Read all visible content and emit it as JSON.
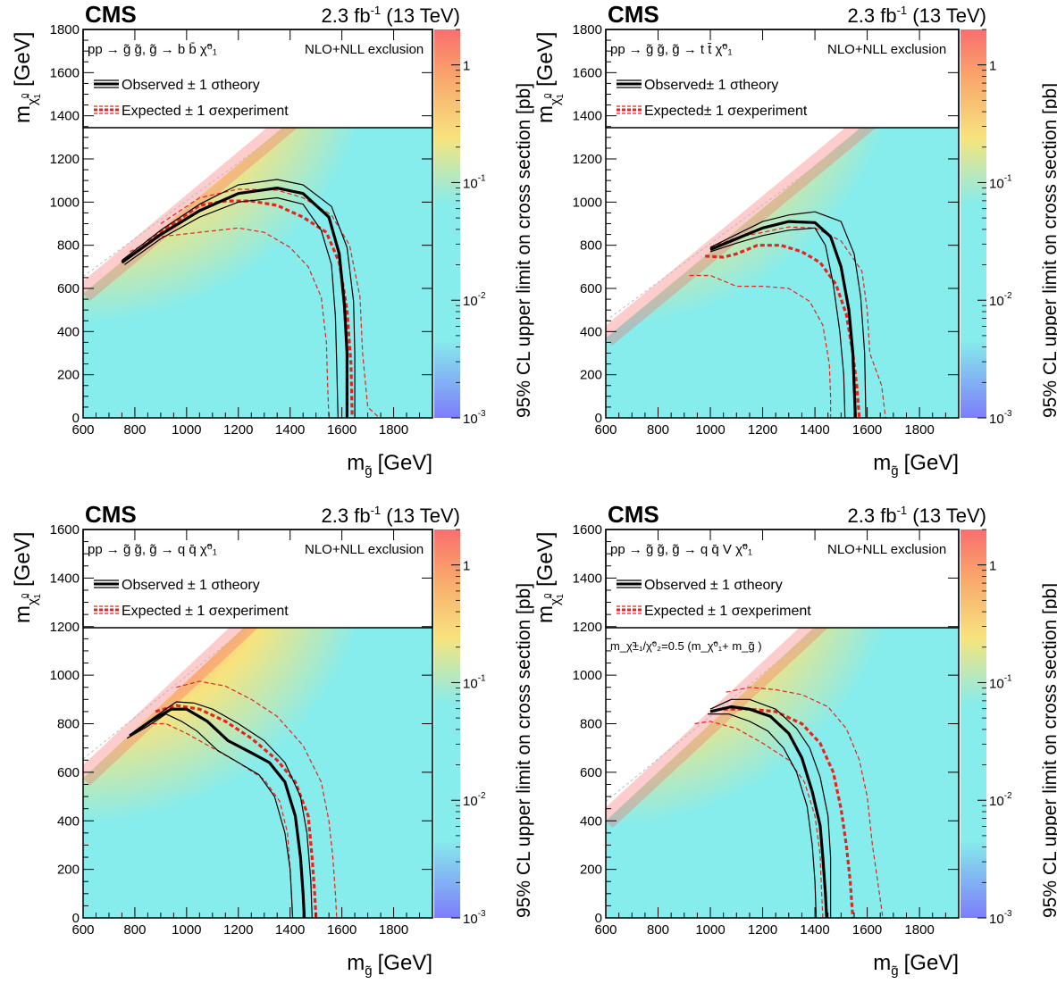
{
  "figure": {
    "experiment": "CMS",
    "lumi": "2.3 fb",
    "lumi_exp": "-1",
    "energy": " (13 TeV)",
    "x_title": "m",
    "x_title_sub": "g̃",
    "unit": "[GeV]",
    "y_title": "m",
    "y_title_sub": "χ̃",
    "y_title_sub_sup": "0",
    "y_title_sub_sub": "1",
    "z_title": "95% CL upper limit on cross section [pb]",
    "z_ticks": [
      {
        "base": "1",
        "exp": "",
        "value": 1
      },
      {
        "base": "10",
        "exp": "-1",
        "value": 0.1
      },
      {
        "base": "10",
        "exp": "-2",
        "value": 0.01
      },
      {
        "base": "10",
        "exp": "-3",
        "value": 0.001
      }
    ],
    "legend_common": {
      "nlo": "NLO+NLL exclusion",
      "observed": "Observed",
      "expected": "Expected",
      "pm1": "± 1",
      "sigma": "σ",
      "theory_sub": "theory",
      "experiment_sub": "experiment"
    },
    "colors": {
      "observed": "#000000",
      "expected": "#e8231c",
      "diagonal": "#bbbbbb",
      "z_high": "#f96e6e",
      "z_mid": "#f7e47e",
      "z_low": "#87ecec",
      "z_min": "#7d7dfa"
    }
  },
  "chart_data": [
    {
      "type": "heatmap",
      "process": "pp → g̃ g̃, g̃ → b b̄ χ̃⁰₁",
      "legend_observed": "Observed ± 1 σtheory",
      "legend_expected": "Expected ± 1 σexperiment",
      "xlim": [
        600,
        1950
      ],
      "ylim": [
        0,
        1800
      ],
      "xticks": [
        600,
        800,
        1000,
        1200,
        1400,
        1600,
        1800
      ],
      "yticks": [
        0,
        200,
        400,
        600,
        800,
        1000,
        1200,
        1400,
        1600,
        1800
      ],
      "zlim": [
        0.001,
        2
      ],
      "z_log": true,
      "heat_peak_x": 600,
      "heat_hot_exp": 1.3,
      "heat_cold_exp": -2.0,
      "diagonal_offset": 25,
      "note": "",
      "observed": [
        [
          750,
          720
        ],
        [
          900,
          850
        ],
        [
          1050,
          960
        ],
        [
          1200,
          1040
        ],
        [
          1350,
          1065
        ],
        [
          1450,
          1040
        ],
        [
          1550,
          930
        ],
        [
          1590,
          760
        ],
        [
          1610,
          520
        ],
        [
          1620,
          300
        ],
        [
          1620,
          0
        ]
      ],
      "observed_plus": [
        [
          750,
          730
        ],
        [
          900,
          870
        ],
        [
          1050,
          990
        ],
        [
          1200,
          1080
        ],
        [
          1350,
          1105
        ],
        [
          1450,
          1080
        ],
        [
          1560,
          980
        ],
        [
          1620,
          790
        ],
        [
          1645,
          540
        ],
        [
          1650,
          300
        ],
        [
          1650,
          0
        ]
      ],
      "observed_minus": [
        [
          760,
          710
        ],
        [
          900,
          830
        ],
        [
          1050,
          930
        ],
        [
          1200,
          1000
        ],
        [
          1350,
          1020
        ],
        [
          1450,
          990
        ],
        [
          1520,
          870
        ],
        [
          1560,
          710
        ],
        [
          1575,
          470
        ],
        [
          1580,
          260
        ],
        [
          1585,
          0
        ]
      ],
      "expected": [
        [
          850,
          820
        ],
        [
          950,
          900
        ],
        [
          1050,
          985
        ],
        [
          1150,
          1005
        ],
        [
          1250,
          1005
        ],
        [
          1350,
          985
        ],
        [
          1450,
          930
        ],
        [
          1540,
          860
        ],
        [
          1590,
          720
        ],
        [
          1620,
          500
        ],
        [
          1635,
          250
        ],
        [
          1640,
          0
        ]
      ],
      "expected_plus": [
        [
          900,
          900
        ],
        [
          1050,
          1020
        ],
        [
          1200,
          1060
        ],
        [
          1350,
          1055
        ],
        [
          1450,
          1020
        ],
        [
          1560,
          940
        ],
        [
          1630,
          800
        ],
        [
          1670,
          560
        ],
        [
          1680,
          300
        ],
        [
          1700,
          50
        ],
        [
          1745,
          0
        ]
      ],
      "expected_minus": [
        [
          780,
          770
        ],
        [
          900,
          840
        ],
        [
          1050,
          860
        ],
        [
          1200,
          880
        ],
        [
          1300,
          860
        ],
        [
          1400,
          790
        ],
        [
          1470,
          700
        ],
        [
          1520,
          560
        ],
        [
          1540,
          350
        ],
        [
          1545,
          150
        ],
        [
          1550,
          0
        ]
      ]
    },
    {
      "type": "heatmap",
      "process": "pp → g̃ g̃, g̃ → t t̄ χ̃⁰₁",
      "legend_observed": "Observed± 1 σtheory",
      "legend_expected": "Expected± 1 σexperiment",
      "xlim": [
        600,
        1950
      ],
      "ylim": [
        0,
        1800
      ],
      "xticks": [
        600,
        800,
        1000,
        1200,
        1400,
        1600,
        1800
      ],
      "yticks": [
        0,
        200,
        400,
        600,
        800,
        1000,
        1200,
        1400,
        1600,
        1800
      ],
      "zlim": [
        0.001,
        2
      ],
      "z_log": true,
      "heat_peak_x": 600,
      "heat_hot_exp": 0.8,
      "heat_cold_exp": -2.0,
      "diagonal_offset": 230,
      "note": "",
      "observed": [
        [
          1000,
          780
        ],
        [
          1100,
          830
        ],
        [
          1200,
          880
        ],
        [
          1300,
          910
        ],
        [
          1400,
          905
        ],
        [
          1460,
          840
        ],
        [
          1500,
          700
        ],
        [
          1530,
          500
        ],
        [
          1545,
          300
        ],
        [
          1555,
          0
        ]
      ],
      "observed_plus": [
        [
          1000,
          790
        ],
        [
          1100,
          850
        ],
        [
          1200,
          910
        ],
        [
          1300,
          940
        ],
        [
          1400,
          955
        ],
        [
          1500,
          910
        ],
        [
          1550,
          760
        ],
        [
          1575,
          560
        ],
        [
          1590,
          300
        ],
        [
          1595,
          0
        ]
      ],
      "observed_minus": [
        [
          1000,
          770
        ],
        [
          1100,
          810
        ],
        [
          1200,
          845
        ],
        [
          1300,
          870
        ],
        [
          1400,
          880
        ],
        [
          1440,
          800
        ],
        [
          1470,
          620
        ],
        [
          1495,
          400
        ],
        [
          1510,
          200
        ],
        [
          1515,
          0
        ]
      ],
      "expected": [
        [
          980,
          750
        ],
        [
          1050,
          745
        ],
        [
          1100,
          760
        ],
        [
          1180,
          800
        ],
        [
          1270,
          800
        ],
        [
          1350,
          770
        ],
        [
          1420,
          720
        ],
        [
          1480,
          620
        ],
        [
          1520,
          480
        ],
        [
          1545,
          300
        ],
        [
          1560,
          150
        ],
        [
          1570,
          0
        ]
      ],
      "expected_plus": [
        [
          1000,
          790
        ],
        [
          1100,
          835
        ],
        [
          1200,
          860
        ],
        [
          1300,
          885
        ],
        [
          1400,
          880
        ],
        [
          1500,
          820
        ],
        [
          1580,
          680
        ],
        [
          1600,
          500
        ],
        [
          1610,
          300
        ],
        [
          1655,
          150
        ],
        [
          1670,
          0
        ]
      ],
      "expected_minus": [
        [
          920,
          660
        ],
        [
          1000,
          660
        ],
        [
          1100,
          610
        ],
        [
          1200,
          610
        ],
        [
          1300,
          600
        ],
        [
          1380,
          540
        ],
        [
          1430,
          430
        ],
        [
          1455,
          250
        ],
        [
          1460,
          100
        ],
        [
          1460,
          0
        ]
      ]
    },
    {
      "type": "heatmap",
      "process": "pp → g̃ g̃, g̃ → q q̄ χ̃⁰₁",
      "legend_observed": "Observed ± 1 σtheory",
      "legend_expected": "Expected ± 1 σexperiment",
      "xlim": [
        600,
        1950
      ],
      "ylim": [
        0,
        1600
      ],
      "xticks": [
        600,
        800,
        1000,
        1200,
        1400,
        1600,
        1800
      ],
      "yticks": [
        0,
        200,
        400,
        600,
        800,
        1000,
        1200,
        1400,
        1600
      ],
      "zlim": [
        0.001,
        2
      ],
      "z_log": true,
      "heat_peak_x": 600,
      "heat_hot_exp": 0.7,
      "heat_cold_exp": -2.0,
      "diagonal_offset": 25,
      "note": "",
      "observed": [
        [
          780,
          750
        ],
        [
          860,
          810
        ],
        [
          940,
          860
        ],
        [
          1000,
          860
        ],
        [
          1080,
          810
        ],
        [
          1160,
          730
        ],
        [
          1250,
          680
        ],
        [
          1320,
          640
        ],
        [
          1380,
          560
        ],
        [
          1420,
          420
        ],
        [
          1440,
          250
        ],
        [
          1450,
          100
        ],
        [
          1455,
          0
        ]
      ],
      "observed_plus": [
        [
          800,
          770
        ],
        [
          880,
          830
        ],
        [
          960,
          890
        ],
        [
          1030,
          885
        ],
        [
          1100,
          860
        ],
        [
          1200,
          800
        ],
        [
          1300,
          730
        ],
        [
          1380,
          640
        ],
        [
          1440,
          500
        ],
        [
          1465,
          350
        ],
        [
          1480,
          150
        ],
        [
          1485,
          0
        ]
      ],
      "observed_minus": [
        [
          770,
          740
        ],
        [
          850,
          790
        ],
        [
          920,
          840
        ],
        [
          980,
          810
        ],
        [
          1040,
          770
        ],
        [
          1120,
          690
        ],
        [
          1200,
          640
        ],
        [
          1280,
          590
        ],
        [
          1340,
          500
        ],
        [
          1380,
          350
        ],
        [
          1400,
          200
        ],
        [
          1410,
          0
        ]
      ],
      "expected": [
        [
          880,
          850
        ],
        [
          960,
          875
        ],
        [
          1050,
          860
        ],
        [
          1150,
          810
        ],
        [
          1250,
          740
        ],
        [
          1350,
          650
        ],
        [
          1420,
          560
        ],
        [
          1470,
          420
        ],
        [
          1485,
          250
        ],
        [
          1495,
          100
        ],
        [
          1500,
          0
        ]
      ],
      "expected_plus": [
        [
          960,
          950
        ],
        [
          1050,
          975
        ],
        [
          1150,
          955
        ],
        [
          1250,
          900
        ],
        [
          1350,
          830
        ],
        [
          1450,
          710
        ],
        [
          1520,
          560
        ],
        [
          1550,
          400
        ],
        [
          1565,
          250
        ],
        [
          1575,
          100
        ],
        [
          1580,
          0
        ]
      ],
      "expected_minus": [
        [
          840,
          800
        ],
        [
          920,
          800
        ],
        [
          1000,
          760
        ],
        [
          1100,
          700
        ],
        [
          1200,
          640
        ],
        [
          1300,
          570
        ],
        [
          1360,
          480
        ],
        [
          1390,
          350
        ],
        [
          1400,
          200
        ],
        [
          1405,
          100
        ],
        [
          1410,
          0
        ]
      ]
    },
    {
      "type": "heatmap",
      "process": "pp → g̃ g̃, g̃ → q q̄ V χ̃⁰₁",
      "legend_observed": "Observed ± 1 σtheory",
      "legend_expected": "Expected ± 1 σexperiment",
      "xlim": [
        600,
        1950
      ],
      "ylim": [
        0,
        1600
      ],
      "xticks": [
        600,
        800,
        1000,
        1200,
        1400,
        1600,
        1800
      ],
      "yticks": [
        0,
        200,
        400,
        600,
        800,
        1000,
        1200,
        1400,
        1600
      ],
      "zlim": [
        0.001,
        2
      ],
      "z_log": true,
      "heat_peak_x": 600,
      "heat_hot_exp": 0.6,
      "heat_cold_exp": -2.0,
      "diagonal_offset": 200,
      "note": "m_χ̃±₁/χ̃⁰₂=0.5 (m_χ̃⁰₁+ m_g̃ )",
      "observed": [
        [
          1000,
          850
        ],
        [
          1080,
          870
        ],
        [
          1150,
          860
        ],
        [
          1230,
          830
        ],
        [
          1300,
          760
        ],
        [
          1350,
          660
        ],
        [
          1390,
          520
        ],
        [
          1420,
          380
        ],
        [
          1430,
          250
        ],
        [
          1440,
          100
        ],
        [
          1445,
          0
        ]
      ],
      "observed_plus": [
        [
          1000,
          860
        ],
        [
          1080,
          900
        ],
        [
          1150,
          900
        ],
        [
          1250,
          860
        ],
        [
          1330,
          780
        ],
        [
          1380,
          700
        ],
        [
          1420,
          580
        ],
        [
          1450,
          420
        ],
        [
          1460,
          250
        ],
        [
          1460,
          100
        ],
        [
          1460,
          0
        ]
      ],
      "observed_minus": [
        [
          990,
          840
        ],
        [
          1070,
          840
        ],
        [
          1150,
          810
        ],
        [
          1220,
          770
        ],
        [
          1280,
          700
        ],
        [
          1330,
          600
        ],
        [
          1370,
          460
        ],
        [
          1390,
          300
        ],
        [
          1400,
          150
        ],
        [
          1405,
          0
        ]
      ],
      "expected": [
        [
          1050,
          860
        ],
        [
          1150,
          860
        ],
        [
          1250,
          850
        ],
        [
          1350,
          800
        ],
        [
          1420,
          720
        ],
        [
          1470,
          600
        ],
        [
          1500,
          450
        ],
        [
          1520,
          300
        ],
        [
          1535,
          150
        ],
        [
          1545,
          0
        ]
      ],
      "expected_plus": [
        [
          1060,
          930
        ],
        [
          1150,
          950
        ],
        [
          1250,
          940
        ],
        [
          1350,
          920
        ],
        [
          1450,
          870
        ],
        [
          1520,
          780
        ],
        [
          1570,
          650
        ],
        [
          1600,
          500
        ],
        [
          1620,
          300
        ],
        [
          1640,
          150
        ],
        [
          1660,
          0
        ]
      ],
      "expected_minus": [
        [
          940,
          800
        ],
        [
          1000,
          810
        ],
        [
          1100,
          780
        ],
        [
          1200,
          720
        ],
        [
          1300,
          650
        ],
        [
          1360,
          560
        ],
        [
          1400,
          420
        ],
        [
          1420,
          260
        ],
        [
          1425,
          120
        ],
        [
          1430,
          0
        ]
      ]
    }
  ]
}
